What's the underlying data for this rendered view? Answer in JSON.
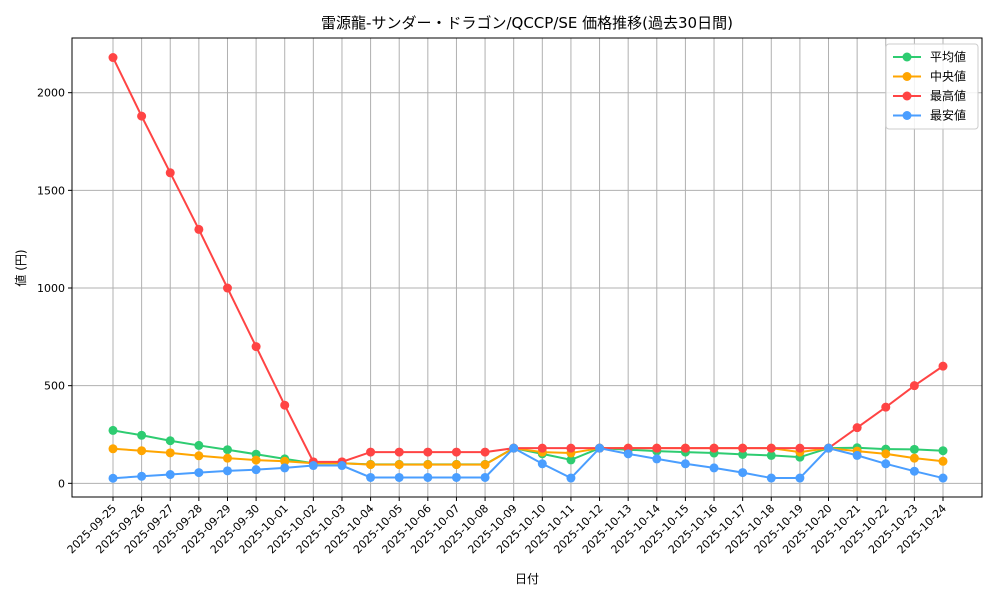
{
  "chart_data": {
    "type": "line",
    "title": "雷源龍-サンダー・ドラゴン/QCCP/SE 価格推移(過去30日間)",
    "xlabel": "日付",
    "ylabel": "値 (円)",
    "ylim": [
      -70,
      2280
    ],
    "yticks": [
      0,
      500,
      1000,
      1500,
      2000
    ],
    "grid": true,
    "legend_position": "top-right",
    "x": [
      "2025-09-25",
      "2025-09-26",
      "2025-09-27",
      "2025-09-28",
      "2025-09-29",
      "2025-09-30",
      "2025-10-01",
      "2025-10-02",
      "2025-10-03",
      "2025-10-04",
      "2025-10-05",
      "2025-10-06",
      "2025-10-07",
      "2025-10-08",
      "2025-10-09",
      "2025-10-10",
      "2025-10-11",
      "2025-10-12",
      "2025-10-13",
      "2025-10-14",
      "2025-10-15",
      "2025-10-16",
      "2025-10-17",
      "2025-10-18",
      "2025-10-19",
      "2025-10-20",
      "2025-10-21",
      "2025-10-22",
      "2025-10-23",
      "2025-10-24"
    ],
    "series": [
      {
        "name": "平均値",
        "color": "#2ecc71",
        "values": [
          271,
          246,
          218,
          194,
          172,
          149,
          125,
          103,
          103,
          97,
          97,
          97,
          97,
          97,
          180,
          151,
          120,
          180,
          172,
          165,
          160,
          155,
          148,
          143,
          134,
          180,
          182,
          175,
          174,
          167
        ]
      },
      {
        "name": "中央値",
        "color": "#ffa500",
        "values": [
          177,
          167,
          156,
          141,
          129,
          119,
          113,
          103,
          103,
          96,
          96,
          96,
          96,
          96,
          180,
          160,
          155,
          180,
          180,
          180,
          180,
          180,
          180,
          180,
          160,
          180,
          165,
          151,
          129,
          113
        ]
      },
      {
        "name": "最高値",
        "color": "#ff4444",
        "values": [
          2180,
          1880,
          1590,
          1300,
          1000,
          700,
          400,
          110,
          110,
          160,
          160,
          160,
          160,
          160,
          180,
          180,
          180,
          180,
          180,
          180,
          180,
          180,
          180,
          180,
          180,
          180,
          285,
          390,
          500,
          600
        ]
      },
      {
        "name": "最安値",
        "color": "#4a9eff",
        "values": [
          26,
          36,
          45,
          55,
          64,
          70,
          79,
          91,
          91,
          30,
          30,
          30,
          30,
          30,
          180,
          100,
          27,
          180,
          151,
          125,
          100,
          79,
          55,
          27,
          27,
          180,
          143,
          100,
          62,
          27
        ]
      }
    ]
  }
}
